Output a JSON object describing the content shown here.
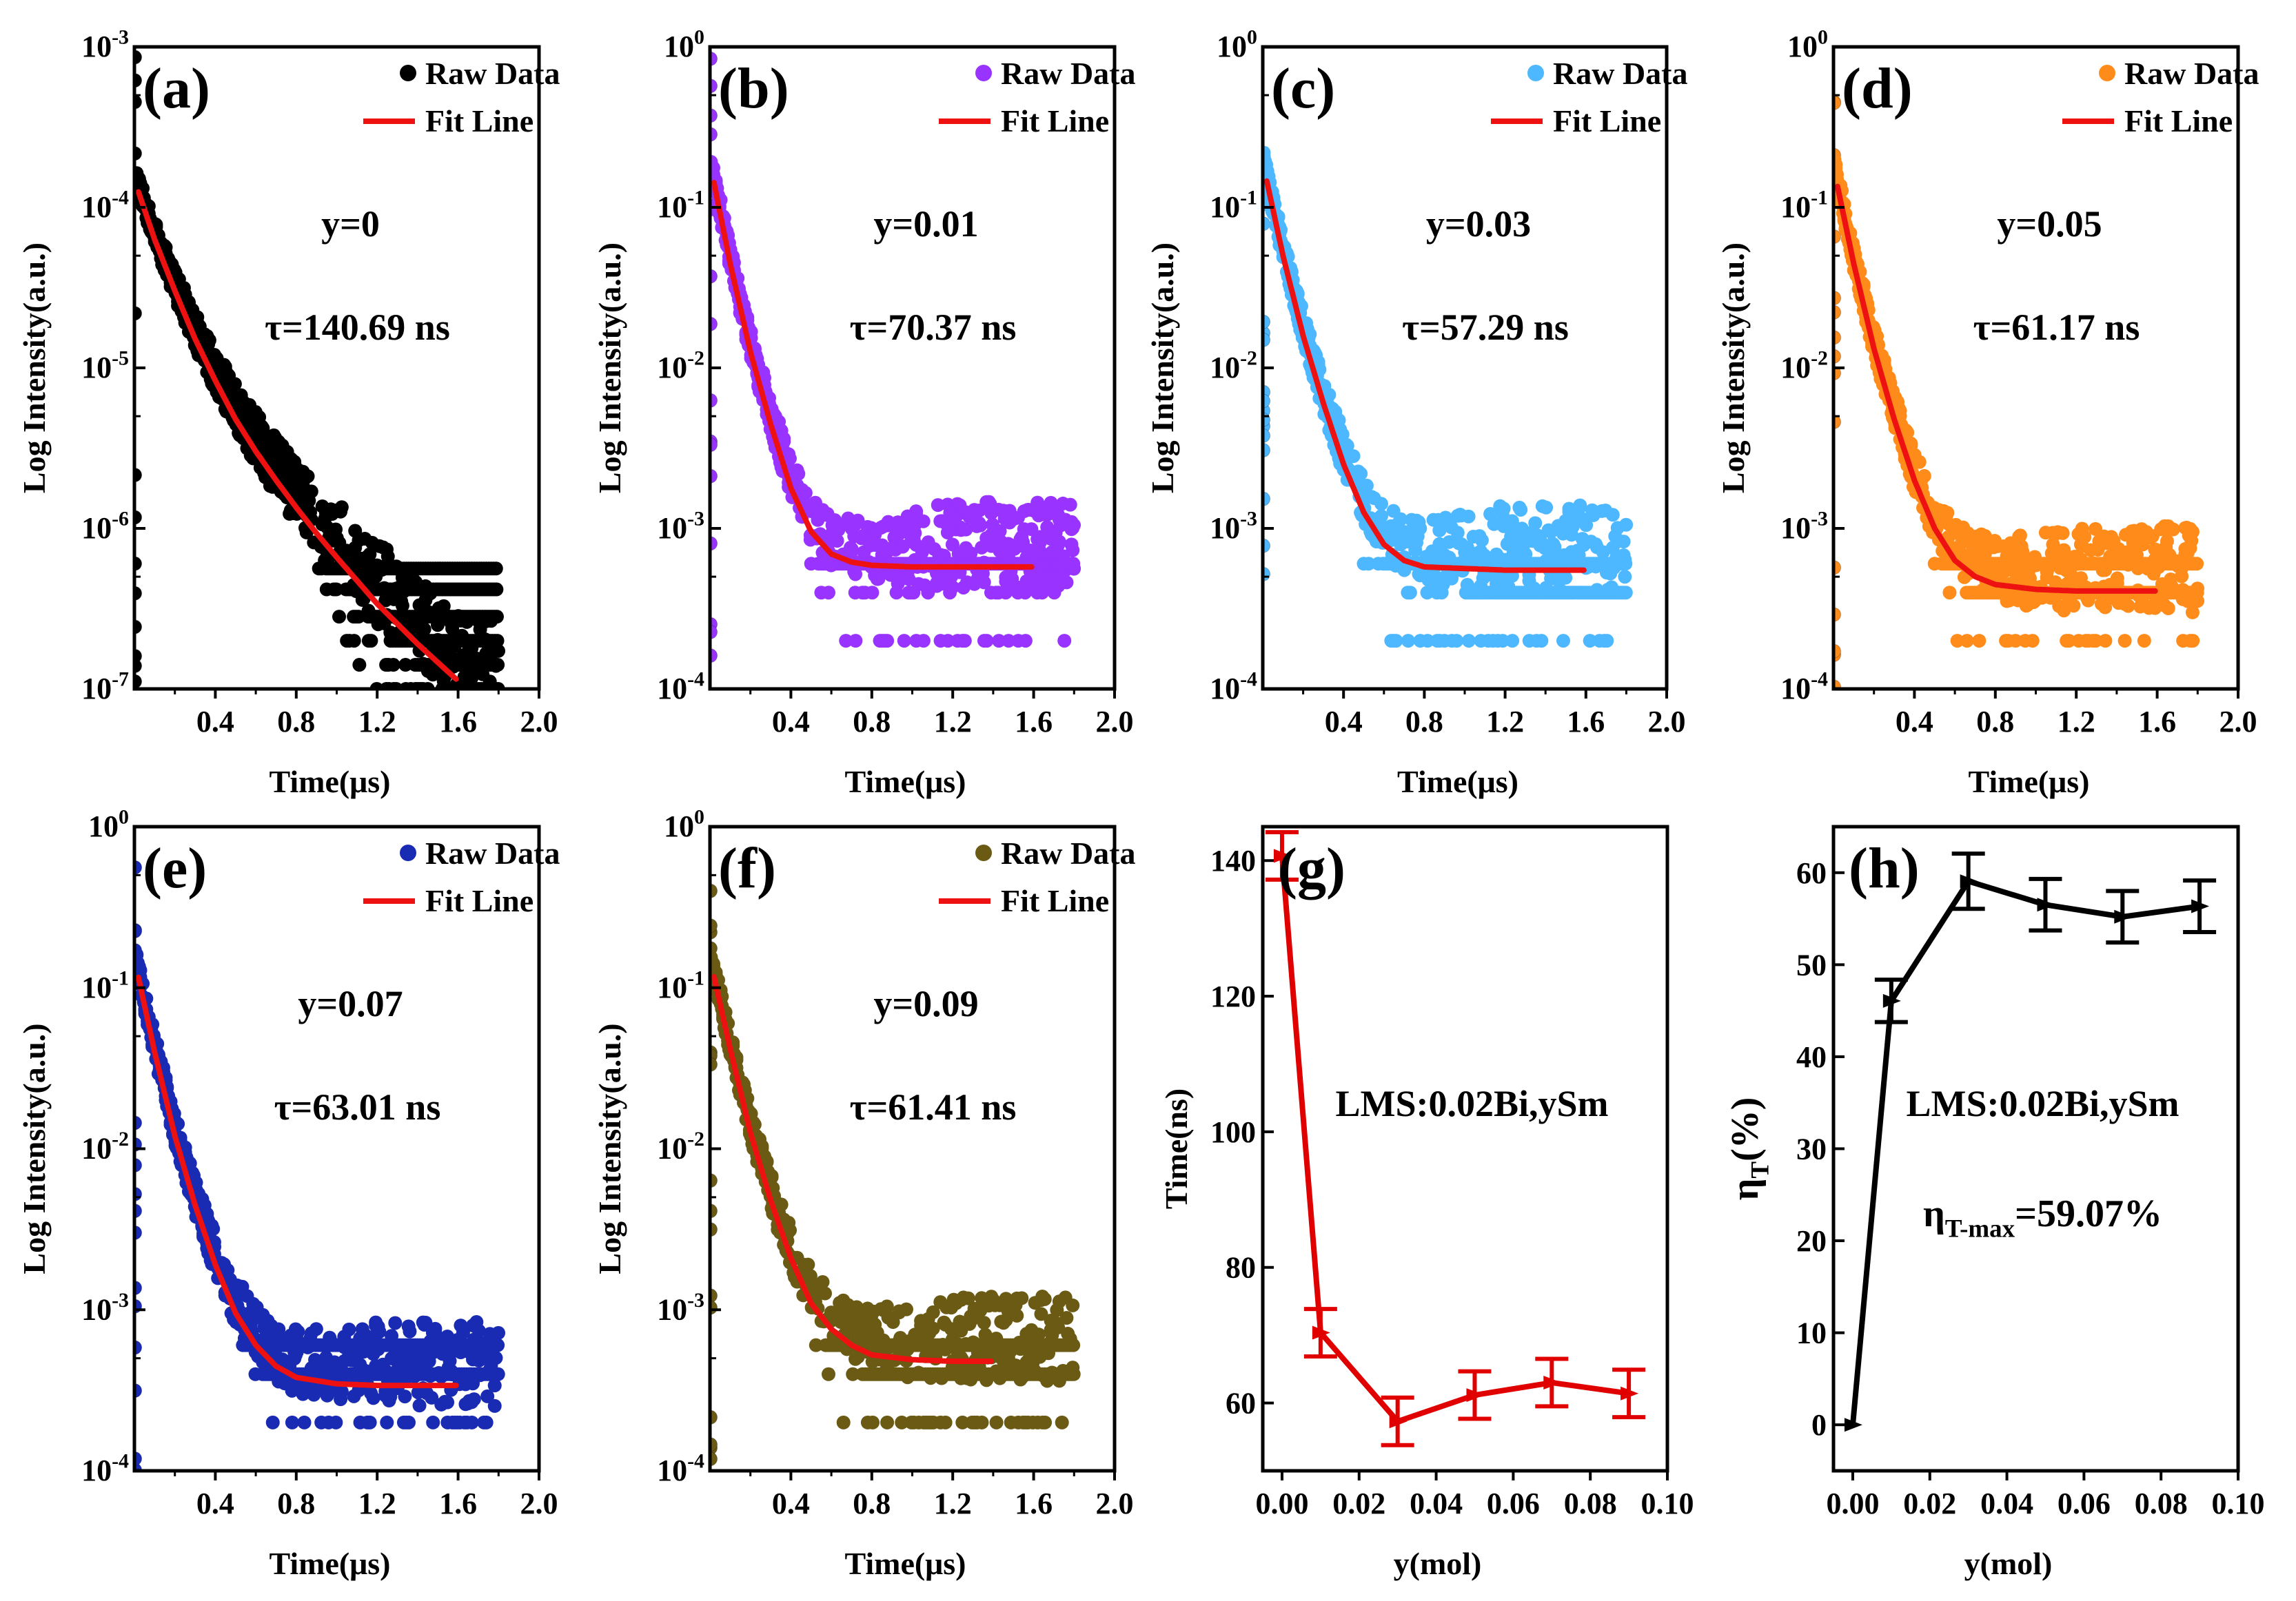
{
  "figure": {
    "description_free": true
  },
  "chart_data": [
    {
      "id": "a",
      "type": "scatter",
      "panel_label": "(a)",
      "log_y": true,
      "ylim_exp": [
        -7,
        -3
      ],
      "y_ticks": [
        {
          "t": "10",
          "e": "-7"
        },
        {
          "t": "10",
          "e": "-6"
        },
        {
          "t": "10",
          "e": "-5"
        },
        {
          "t": "10",
          "e": "-4"
        },
        {
          "t": "10",
          "e": "-3"
        }
      ],
      "xlim": [
        0,
        2.0
      ],
      "x_ticks": [
        "0.4",
        "0.8",
        "1.2",
        "1.6",
        "2.0"
      ],
      "xlabel": "Time(μs)",
      "ylabel": "Log Intensity(a.u.)",
      "raw_color": "#000000",
      "legend": {
        "raw": "Raw Data",
        "fit": "Fit Line"
      },
      "annotation_y": "y=0",
      "annotation_tau": "τ=140.69 ns",
      "fit": {
        "x": [
          0.0,
          0.1,
          0.2,
          0.3,
          0.4,
          0.5,
          0.6,
          0.7,
          0.8,
          0.9,
          1.0,
          1.2,
          1.4,
          1.6
        ],
        "logy": [
          -3.83,
          -4.2,
          -4.52,
          -4.82,
          -5.08,
          -5.32,
          -5.52,
          -5.7,
          -5.87,
          -6.03,
          -6.18,
          -6.47,
          -6.72,
          -6.95
        ]
      },
      "noise_floor_log": [
        -6.25,
        -6.38,
        -6.55,
        -6.7,
        -6.85,
        -7.0
      ],
      "floor_start": 0.8
    },
    {
      "id": "b",
      "type": "scatter",
      "panel_label": "(b)",
      "log_y": true,
      "ylim_exp": [
        -4,
        0
      ],
      "y_ticks": [
        {
          "t": "10",
          "e": "-4"
        },
        {
          "t": "10",
          "e": "-3"
        },
        {
          "t": "10",
          "e": "-2"
        },
        {
          "t": "10",
          "e": "-1"
        },
        {
          "t": "10",
          "e": "0"
        }
      ],
      "xlim": [
        0,
        2.0
      ],
      "x_ticks": [
        "0.4",
        "0.8",
        "1.2",
        "1.6",
        "2.0"
      ],
      "xlabel": "Time(μs)",
      "ylabel": "Log Intensity(a.u.)",
      "raw_color": "#9933ff",
      "legend": {
        "raw": "Raw Data",
        "fit": "Fit Line"
      },
      "annotation_y": "y=0.01",
      "annotation_tau": "τ=70.37 ns",
      "fit": {
        "x": [
          0.0,
          0.1,
          0.2,
          0.3,
          0.4,
          0.5,
          0.6,
          0.7,
          0.8,
          1.0,
          1.2,
          1.4,
          1.6
        ],
        "logy": [
          -0.72,
          -1.35,
          -1.9,
          -2.35,
          -2.75,
          -3.02,
          -3.16,
          -3.21,
          -3.23,
          -3.24,
          -3.24,
          -3.24,
          -3.24
        ]
      },
      "noise_floor_log": [
        -3.22,
        -3.4,
        -3.7
      ],
      "floor_start": 0.4
    },
    {
      "id": "c",
      "type": "scatter",
      "panel_label": "(c)",
      "log_y": true,
      "ylim_exp": [
        -4,
        0
      ],
      "y_ticks": [
        {
          "t": "10",
          "e": "-4"
        },
        {
          "t": "10",
          "e": "-3"
        },
        {
          "t": "10",
          "e": "-2"
        },
        {
          "t": "10",
          "e": "-1"
        },
        {
          "t": "10",
          "e": "0"
        }
      ],
      "xlim": [
        0,
        2.0
      ],
      "x_ticks": [
        "0.4",
        "0.8",
        "1.2",
        "1.6",
        "2.0"
      ],
      "xlabel": "Time(μs)",
      "ylabel": "Log Intensity(a.u.)",
      "raw_color": "#4db8ff",
      "legend": {
        "raw": "Raw Data",
        "fit": "Fit Line"
      },
      "annotation_y": "y=0.03",
      "annotation_tau": "τ=57.29 ns",
      "fit": {
        "x": [
          0.0,
          0.1,
          0.2,
          0.3,
          0.4,
          0.5,
          0.6,
          0.7,
          0.8,
          1.0,
          1.2,
          1.4,
          1.6
        ],
        "logy": [
          -0.72,
          -1.3,
          -1.8,
          -2.22,
          -2.6,
          -2.9,
          -3.1,
          -3.2,
          -3.24,
          -3.25,
          -3.26,
          -3.26,
          -3.26
        ]
      },
      "noise_floor_log": [
        -3.22,
        -3.4,
        -3.7
      ],
      "floor_start": 0.4
    },
    {
      "id": "d",
      "type": "scatter",
      "panel_label": "(d)",
      "log_y": true,
      "ylim_exp": [
        -4,
        0
      ],
      "y_ticks": [
        {
          "t": "10",
          "e": "-4"
        },
        {
          "t": "10",
          "e": "-3"
        },
        {
          "t": "10",
          "e": "-2"
        },
        {
          "t": "10",
          "e": "-1"
        },
        {
          "t": "10",
          "e": "0"
        }
      ],
      "xlim": [
        0,
        2.0
      ],
      "x_ticks": [
        "0.4",
        "0.8",
        "1.2",
        "1.6",
        "2.0"
      ],
      "xlabel": "Time(μs)",
      "ylabel": "Log Intensity(a.u.)",
      "raw_color": "#ff8c1a",
      "legend": {
        "raw": "Raw Data",
        "fit": "Fit Line"
      },
      "annotation_y": "y=0.05",
      "annotation_tau": "τ=61.17 ns",
      "fit": {
        "x": [
          0.0,
          0.1,
          0.2,
          0.3,
          0.4,
          0.5,
          0.6,
          0.7,
          0.8,
          1.0,
          1.2,
          1.4,
          1.6
        ],
        "logy": [
          -0.75,
          -1.35,
          -1.88,
          -2.32,
          -2.7,
          -3.0,
          -3.2,
          -3.3,
          -3.35,
          -3.38,
          -3.39,
          -3.39,
          -3.39
        ]
      },
      "noise_floor_log": [
        -3.22,
        -3.4,
        -3.7
      ],
      "floor_start": 0.4
    },
    {
      "id": "e",
      "type": "scatter",
      "panel_label": "(e)",
      "log_y": true,
      "ylim_exp": [
        -4,
        0
      ],
      "y_ticks": [
        {
          "t": "10",
          "e": "-4"
        },
        {
          "t": "10",
          "e": "-3"
        },
        {
          "t": "10",
          "e": "-2"
        },
        {
          "t": "10",
          "e": "-1"
        },
        {
          "t": "10",
          "e": "0"
        }
      ],
      "xlim": [
        0,
        2.0
      ],
      "x_ticks": [
        "0.4",
        "0.8",
        "1.2",
        "1.6",
        "2.0"
      ],
      "xlabel": "Time(μs)",
      "ylabel": "Log Intensity(a.u.)",
      "raw_color": "#1a2bb3",
      "legend": {
        "raw": "Raw Data",
        "fit": "Fit Line"
      },
      "annotation_y": "y=0.07",
      "annotation_tau": "τ=63.01 ns",
      "fit": {
        "x": [
          0.0,
          0.1,
          0.2,
          0.3,
          0.4,
          0.5,
          0.6,
          0.7,
          0.8,
          1.0,
          1.2,
          1.4,
          1.6
        ],
        "logy": [
          -0.82,
          -1.4,
          -1.92,
          -2.35,
          -2.72,
          -3.02,
          -3.22,
          -3.35,
          -3.42,
          -3.46,
          -3.47,
          -3.47,
          -3.47
        ]
      },
      "noise_floor_log": [
        -3.22,
        -3.4,
        -3.7
      ],
      "floor_start": 0.4
    },
    {
      "id": "f",
      "type": "scatter",
      "panel_label": "(f)",
      "log_y": true,
      "ylim_exp": [
        -4,
        0
      ],
      "y_ticks": [
        {
          "t": "10",
          "e": "-4"
        },
        {
          "t": "10",
          "e": "-3"
        },
        {
          "t": "10",
          "e": "-2"
        },
        {
          "t": "10",
          "e": "-1"
        },
        {
          "t": "10",
          "e": "0"
        }
      ],
      "xlim": [
        0,
        2.0
      ],
      "x_ticks": [
        "0.4",
        "0.8",
        "1.2",
        "1.6",
        "2.0"
      ],
      "xlabel": "Time(μs)",
      "ylabel": "Log Intensity(a.u.)",
      "raw_color": "#6b5a14",
      "legend": {
        "raw": "Raw Data",
        "fit": "Fit Line"
      },
      "annotation_y": "y=0.09",
      "annotation_tau": "τ=61.41 ns",
      "fit": {
        "x": [
          0.0,
          0.1,
          0.2,
          0.3,
          0.4,
          0.5,
          0.6,
          0.7,
          0.8,
          1.0,
          1.2,
          1.4
        ],
        "logy": [
          -0.82,
          -1.38,
          -1.9,
          -2.32,
          -2.68,
          -2.96,
          -3.12,
          -3.22,
          -3.28,
          -3.31,
          -3.32,
          -3.32
        ]
      },
      "noise_floor_log": [
        -3.22,
        -3.4,
        -3.7
      ],
      "floor_start": 0.4
    },
    {
      "id": "g",
      "type": "line",
      "panel_label": "(g)",
      "xlim": [
        -0.005,
        0.1
      ],
      "ylim": [
        50,
        145
      ],
      "x_ticks": [
        "0.00",
        "0.02",
        "0.04",
        "0.06",
        "0.08",
        "0.10"
      ],
      "y_ticks": [
        "60",
        "80",
        "100",
        "120",
        "140"
      ],
      "xlabel": "y(mol)",
      "ylabel": "Time(ns)",
      "color": "#e00000",
      "annotation": "LMS:0.02Bi,ySm",
      "x": [
        0.0,
        0.01,
        0.03,
        0.05,
        0.07,
        0.09
      ],
      "values": [
        140.69,
        70.37,
        57.29,
        61.17,
        63.01,
        61.41
      ],
      "errors": [
        3.5,
        3.5,
        3.5,
        3.5,
        3.5,
        3.5
      ]
    },
    {
      "id": "h",
      "type": "line",
      "panel_label": "(h)",
      "xlim": [
        -0.005,
        0.1
      ],
      "ylim": [
        -5,
        65
      ],
      "x_ticks": [
        "0.00",
        "0.02",
        "0.04",
        "0.06",
        "0.08",
        "0.10"
      ],
      "y_ticks": [
        "0",
        "10",
        "20",
        "30",
        "40",
        "50",
        "60"
      ],
      "xlabel": "y(mol)",
      "ylabel_main": "η",
      "ylabel_sub": "T",
      "ylabel_unit": "(%)",
      "color": "#000000",
      "annotation": "LMS:0.02Bi,ySm",
      "annotation2_main": "η",
      "annotation2_sub": "T-max",
      "annotation2_rest": "=59.07%",
      "x": [
        0.0,
        0.01,
        0.03,
        0.05,
        0.07,
        0.09
      ],
      "values": [
        0,
        46.07,
        59.07,
        56.52,
        55.21,
        56.35
      ],
      "errors": [
        0,
        2.3,
        3.0,
        2.8,
        2.8,
        2.8
      ]
    }
  ]
}
